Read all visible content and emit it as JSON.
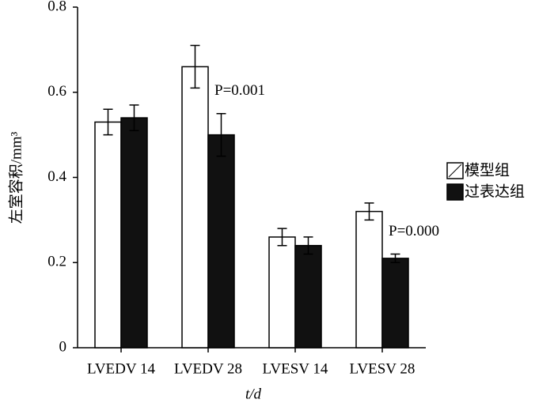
{
  "chart_data": {
    "type": "bar",
    "y_label": "左室容积/mm³",
    "x_label": "t/d",
    "categories": [
      "LVEDV 14",
      "LVEDV 28",
      "LVESV 14",
      "LVESV 28"
    ],
    "series": [
      {
        "name": "模型组",
        "color": "#ffffff",
        "values": [
          0.53,
          0.66,
          0.26,
          0.32
        ],
        "errors": [
          0.03,
          0.05,
          0.02,
          0.02
        ]
      },
      {
        "name": "过表达组",
        "color": "#111111",
        "values": [
          0.54,
          0.5,
          0.24,
          0.21
        ],
        "errors": [
          0.03,
          0.05,
          0.02,
          0.01
        ]
      }
    ],
    "annotations": [
      {
        "text": "P=0.001",
        "category": 1
      },
      {
        "text": "P=0.000",
        "category": 3
      }
    ],
    "ylim": [
      0,
      0.8
    ],
    "yticks": [
      0,
      0.2,
      0.4,
      0.6,
      0.8
    ],
    "legend": "right"
  }
}
